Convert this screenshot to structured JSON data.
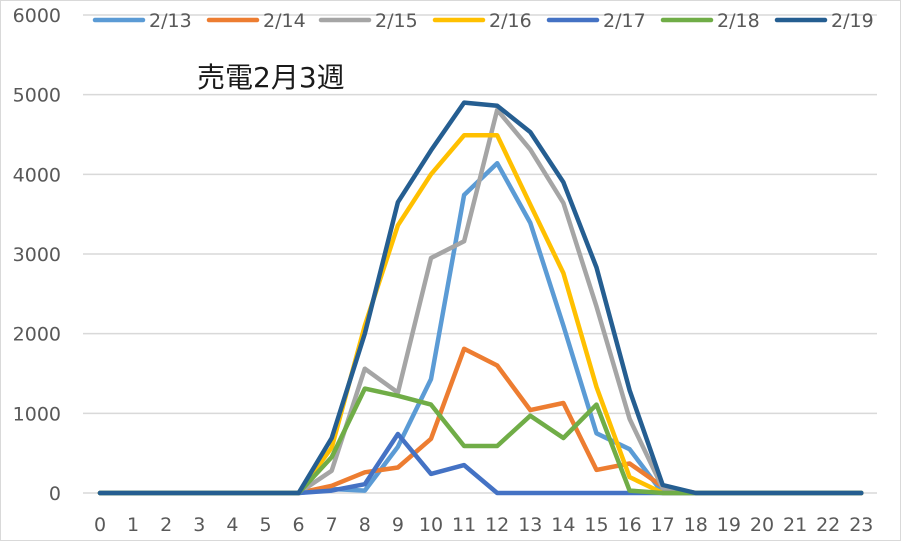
{
  "chart_data": {
    "type": "line",
    "title": "売電2月3週",
    "xlabel": "",
    "ylabel": "",
    "x": [
      0,
      1,
      2,
      3,
      4,
      5,
      6,
      7,
      8,
      9,
      10,
      11,
      12,
      13,
      14,
      15,
      16,
      17,
      18,
      19,
      20,
      21,
      22,
      23
    ],
    "x_tick_labels": [
      "0",
      "1",
      "2",
      "3",
      "4",
      "5",
      "6",
      "7",
      "8",
      "9",
      "10",
      "11",
      "12",
      "13",
      "14",
      "15",
      "16",
      "17",
      "18",
      "19",
      "20",
      "21",
      "22",
      "23"
    ],
    "ylim": [
      0,
      6000
    ],
    "y_ticks": [
      0,
      1000,
      2000,
      3000,
      4000,
      5000,
      6000
    ],
    "grid": "horizontal",
    "legend_position": "top",
    "series": [
      {
        "name": "2/13",
        "color": "#5b9bd5",
        "values": [
          0,
          0,
          0,
          0,
          0,
          0,
          0,
          50,
          30,
          580,
          1430,
          3740,
          4140,
          3390,
          2100,
          750,
          550,
          0,
          0,
          0,
          0,
          0,
          0,
          0
        ]
      },
      {
        "name": "2/14",
        "color": "#ed7d31",
        "values": [
          0,
          0,
          0,
          0,
          0,
          0,
          0,
          90,
          260,
          320,
          680,
          1810,
          1600,
          1040,
          1130,
          290,
          370,
          80,
          0,
          0,
          0,
          0,
          0,
          0
        ]
      },
      {
        "name": "2/15",
        "color": "#a5a5a5",
        "values": [
          0,
          0,
          0,
          0,
          0,
          0,
          0,
          280,
          1560,
          1260,
          2950,
          3160,
          4810,
          4310,
          3640,
          2340,
          930,
          60,
          0,
          0,
          0,
          0,
          0,
          0
        ]
      },
      {
        "name": "2/16",
        "color": "#ffc000",
        "values": [
          0,
          0,
          0,
          0,
          0,
          0,
          0,
          570,
          2100,
          3360,
          4000,
          4490,
          4490,
          3620,
          2760,
          1330,
          200,
          0,
          0,
          0,
          0,
          0,
          0,
          0
        ]
      },
      {
        "name": "2/17",
        "color": "#4472c4",
        "values": [
          0,
          0,
          0,
          0,
          0,
          0,
          0,
          30,
          110,
          740,
          240,
          350,
          0,
          0,
          0,
          0,
          0,
          0,
          0,
          0,
          0,
          0,
          0,
          0
        ]
      },
      {
        "name": "2/18",
        "color": "#70ad47",
        "values": [
          0,
          0,
          0,
          0,
          0,
          0,
          0,
          450,
          1310,
          1220,
          1110,
          590,
          590,
          970,
          690,
          1110,
          30,
          0,
          0,
          0,
          0,
          0,
          0,
          0
        ]
      },
      {
        "name": "2/19",
        "color": "#255e91",
        "values": [
          0,
          0,
          0,
          0,
          0,
          0,
          0,
          690,
          2000,
          3650,
          4300,
          4900,
          4860,
          4530,
          3900,
          2830,
          1290,
          100,
          0,
          0,
          0,
          0,
          0,
          0
        ]
      }
    ]
  }
}
